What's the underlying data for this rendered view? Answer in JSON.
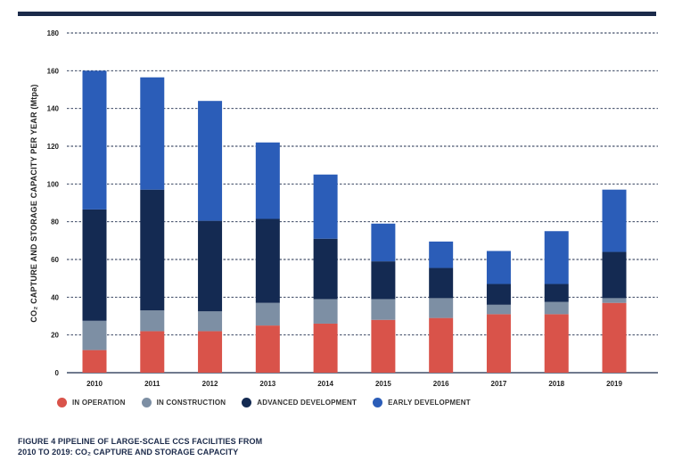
{
  "chart_data": {
    "type": "bar",
    "stacked": true,
    "categories": [
      "2010",
      "2011",
      "2012",
      "2013",
      "2014",
      "2015",
      "2016",
      "2017",
      "2018",
      "2019"
    ],
    "series": [
      {
        "name": "IN OPERATION",
        "color": "#d9534a",
        "values": [
          12,
          22,
          22,
          25,
          26,
          28,
          29,
          31,
          31,
          37
        ]
      },
      {
        "name": "IN CONSTRUCTION",
        "color": "#7d8fa4",
        "values": [
          15.5,
          11,
          10.5,
          12,
          13,
          11,
          10.5,
          5,
          6.5,
          2.5
        ]
      },
      {
        "name": "ADVANCED DEVELOPMENT",
        "color": "#142a52",
        "values": [
          59,
          64,
          48,
          44.5,
          32,
          20,
          16,
          11,
          9.5,
          24.5
        ]
      },
      {
        "name": "EARLY DEVELOPMENT",
        "color": "#2b5db8",
        "values": [
          73.5,
          59.5,
          63.5,
          40.5,
          34,
          20,
          14,
          17.5,
          28,
          33
        ]
      }
    ],
    "ylabel": "CO₂ CAPTURE AND STORAGE CAPACITY PER YEAR (Mtpa)",
    "xlabel": "",
    "ylim": [
      0,
      180
    ],
    "yticks": [
      "0",
      "20",
      "40",
      "60",
      "80",
      "100",
      "120",
      "140",
      "160",
      "180"
    ],
    "grid": "dashed horizontal",
    "legend_position": "bottom"
  },
  "caption": {
    "line1": "FIGURE 4  PIPELINE OF LARGE-SCALE CCS FACILITIES FROM",
    "line2": "2010 TO 2019: CO₂ CAPTURE AND STORAGE CAPACITY"
  }
}
